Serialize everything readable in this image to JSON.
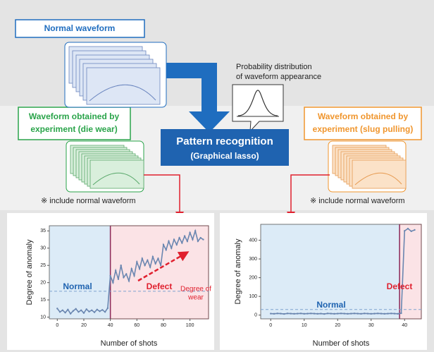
{
  "labels": {
    "normal_waveform": "Normal waveform",
    "die_wear": [
      "Waveform obtained by",
      "experiment (die wear)"
    ],
    "slug_pulling": [
      "Waveform obtained by",
      "experiment (slug pulling)"
    ],
    "probability": [
      "Probability distribution",
      "of waveform appearance"
    ],
    "pattern": "Pattern recognition",
    "method": "(Graphical lasso)",
    "note_left": "※ include normal waveform",
    "note_right": "※ include normal waveform"
  },
  "chart_data": [
    {
      "type": "line",
      "xlabel": "Number of shots",
      "ylabel": "Degree of anomaly",
      "x": [
        0,
        2,
        4,
        6,
        8,
        10,
        12,
        14,
        16,
        18,
        20,
        22,
        24,
        26,
        28,
        30,
        32,
        34,
        36,
        38,
        40,
        42,
        44,
        46,
        48,
        50,
        52,
        54,
        56,
        58,
        60,
        62,
        64,
        66,
        68,
        70,
        72,
        74,
        76,
        78,
        80,
        82,
        84,
        86,
        88,
        90,
        92,
        94,
        96,
        98,
        100,
        102,
        104,
        106,
        108,
        110
      ],
      "series": [
        {
          "color": "#6a86b0",
          "values": [
            12.5,
            11.5,
            12,
            11.3,
            12.2,
            11,
            11.8,
            12.4,
            11.5,
            12,
            11.2,
            12.3,
            11.6,
            12,
            11.4,
            12.2,
            11.7,
            12.1,
            11.5,
            12.6,
            22,
            20,
            23.5,
            21,
            25,
            21.5,
            22.5,
            20.5,
            24,
            22,
            26,
            24,
            27,
            25,
            26.5,
            24.5,
            27.5,
            25.5,
            27,
            25,
            31,
            29.5,
            32,
            30,
            32.5,
            31,
            33,
            31.5,
            33.5,
            32,
            34.5,
            32.5,
            35,
            32,
            33,
            32.5
          ]
        }
      ],
      "xlim": [
        -6,
        114
      ],
      "xticks": [
        0,
        20,
        40,
        60,
        80,
        100
      ],
      "ylim": [
        9.5,
        36.5
      ],
      "yticks": [
        10,
        15,
        20,
        25,
        30,
        35
      ],
      "split": 40,
      "threshold": 17.5,
      "normal_label": "Normal",
      "defect_label": "Defect",
      "wear_label": [
        "Degree of",
        "wear"
      ]
    },
    {
      "type": "line",
      "xlabel": "Number of shots",
      "ylabel": "Degree of anomaly",
      "x": [
        0,
        1,
        2,
        3,
        4,
        5,
        6,
        7,
        8,
        9,
        10,
        11,
        12,
        13,
        14,
        15,
        16,
        17,
        18,
        19,
        20,
        21,
        22,
        23,
        24,
        25,
        26,
        27,
        28,
        29,
        30,
        31,
        32,
        33,
        34,
        35,
        36,
        37,
        38,
        39,
        40,
        41,
        42,
        43
      ],
      "series": [
        {
          "color": "#6a86b0",
          "values": [
            8,
            7,
            9,
            8,
            6,
            9,
            8,
            7,
            8,
            9,
            7,
            8,
            9,
            8,
            7,
            8,
            6,
            9,
            8,
            7,
            8,
            9,
            8,
            7,
            8,
            9,
            8,
            7,
            9,
            8,
            7,
            8,
            9,
            8,
            7,
            8,
            9,
            8,
            7,
            10,
            450,
            462,
            448,
            455
          ]
        }
      ],
      "xlim": [
        -3,
        45
      ],
      "xticks": [
        0,
        10,
        20,
        30,
        40
      ],
      "ylim": [
        -20,
        485
      ],
      "yticks": [
        0,
        100,
        200,
        300,
        400
      ],
      "split": 38.5,
      "threshold": 30,
      "normal_label": "Normal",
      "defect_label": "Defect"
    }
  ]
}
